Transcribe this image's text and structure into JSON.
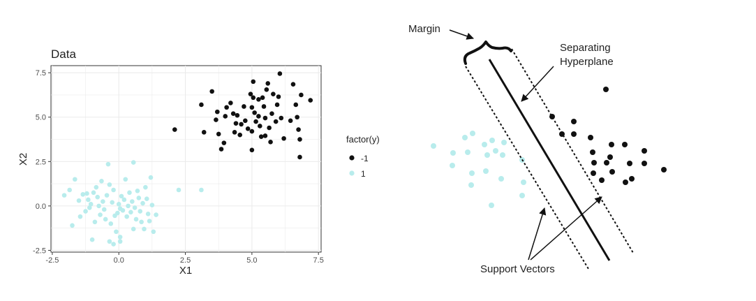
{
  "chart_data": [
    {
      "type": "scatter",
      "title": "Data",
      "xlabel": "X1",
      "ylabel": "X2",
      "xlim": [
        -2.55,
        7.6
      ],
      "ylim": [
        -2.6,
        7.9
      ],
      "x_ticks": [
        "-2.5",
        "0.0",
        "2.5",
        "5.0",
        "7.5"
      ],
      "x_tick_values": [
        -2.5,
        0.0,
        2.5,
        5.0,
        7.5
      ],
      "y_ticks": [
        "-2.5",
        "0.0",
        "2.5",
        "5.0",
        "7.5"
      ],
      "y_tick_values": [
        -2.5,
        0.0,
        2.5,
        5.0,
        7.5
      ],
      "grid": true,
      "panel_background": "#ffffff",
      "grid_color": "#ebebeb",
      "legend": {
        "title": "factor(y)",
        "placement": "right",
        "entries": [
          {
            "label": "-1",
            "color": "#111111"
          },
          {
            "label": "1",
            "color": "#b8ecec"
          }
        ]
      },
      "series": [
        {
          "name": "-1",
          "color": "#111111",
          "points": [
            [
              2.1,
              4.3
            ],
            [
              3.1,
              5.7
            ],
            [
              3.2,
              4.15
            ],
            [
              3.5,
              6.45
            ],
            [
              3.65,
              4.85
            ],
            [
              3.7,
              5.3
            ],
            [
              3.75,
              4.05
            ],
            [
              3.85,
              3.2
            ],
            [
              3.95,
              3.55
            ],
            [
              4.0,
              5.05
            ],
            [
              4.05,
              5.55
            ],
            [
              4.2,
              5.8
            ],
            [
              4.3,
              5.2
            ],
            [
              4.35,
              4.15
            ],
            [
              4.4,
              4.65
            ],
            [
              4.45,
              5.1
            ],
            [
              4.55,
              4.0
            ],
            [
              4.6,
              4.6
            ],
            [
              4.7,
              5.6
            ],
            [
              4.75,
              4.8
            ],
            [
              4.85,
              4.35
            ],
            [
              4.95,
              6.3
            ],
            [
              5.0,
              5.55
            ],
            [
              5.0,
              4.2
            ],
            [
              5.0,
              3.15
            ],
            [
              5.05,
              7.0
            ],
            [
              5.05,
              6.1
            ],
            [
              5.1,
              5.25
            ],
            [
              5.15,
              4.75
            ],
            [
              5.25,
              6.0
            ],
            [
              5.25,
              5.05
            ],
            [
              5.3,
              4.5
            ],
            [
              5.35,
              3.9
            ],
            [
              5.4,
              6.1
            ],
            [
              5.45,
              5.6
            ],
            [
              5.5,
              4.95
            ],
            [
              5.5,
              3.95
            ],
            [
              5.55,
              6.55
            ],
            [
              5.6,
              6.9
            ],
            [
              5.65,
              4.4
            ],
            [
              5.7,
              3.6
            ],
            [
              5.75,
              5.2
            ],
            [
              5.8,
              6.3
            ],
            [
              5.9,
              4.75
            ],
            [
              5.95,
              5.7
            ],
            [
              6.0,
              6.15
            ],
            [
              6.05,
              7.45
            ],
            [
              6.1,
              4.95
            ],
            [
              6.2,
              3.8
            ],
            [
              6.45,
              4.8
            ],
            [
              6.55,
              6.85
            ],
            [
              6.65,
              5.7
            ],
            [
              6.7,
              5.0
            ],
            [
              6.75,
              4.3
            ],
            [
              6.8,
              3.75
            ],
            [
              6.8,
              2.75
            ],
            [
              6.85,
              6.25
            ],
            [
              7.2,
              5.95
            ]
          ]
        },
        {
          "name": "1",
          "color": "#b8ecec",
          "points": [
            [
              -2.05,
              0.6
            ],
            [
              -1.85,
              0.9
            ],
            [
              -1.75,
              -1.1
            ],
            [
              -1.65,
              1.5
            ],
            [
              -1.5,
              0.3
            ],
            [
              -1.45,
              -0.6
            ],
            [
              -1.35,
              0.65
            ],
            [
              -1.25,
              -0.3
            ],
            [
              -1.2,
              0.7
            ],
            [
              -1.15,
              0.35
            ],
            [
              -1.1,
              -0.1
            ],
            [
              -1.05,
              0.1
            ],
            [
              -1.0,
              -1.9
            ],
            [
              -0.95,
              0.75
            ],
            [
              -0.9,
              -0.9
            ],
            [
              -0.85,
              1.05
            ],
            [
              -0.8,
              0.5
            ],
            [
              -0.75,
              0.0
            ],
            [
              -0.7,
              -0.5
            ],
            [
              -0.65,
              1.4
            ],
            [
              -0.6,
              0.25
            ],
            [
              -0.55,
              -0.2
            ],
            [
              -0.5,
              -0.75
            ],
            [
              -0.45,
              0.6
            ],
            [
              -0.4,
              2.35
            ],
            [
              -0.35,
              1.2
            ],
            [
              -0.3,
              -1.0
            ],
            [
              -0.25,
              0.2
            ],
            [
              -0.2,
              0.9
            ],
            [
              -0.15,
              -0.55
            ],
            [
              -0.1,
              -1.45
            ],
            [
              -0.05,
              -0.4
            ],
            [
              0.0,
              0.1
            ],
            [
              0.05,
              -0.15
            ],
            [
              0.05,
              -1.75
            ],
            [
              0.1,
              0.55
            ],
            [
              0.15,
              -0.25
            ],
            [
              0.2,
              0.35
            ],
            [
              0.25,
              1.5
            ],
            [
              0.3,
              -0.6
            ],
            [
              0.35,
              0.0
            ],
            [
              0.4,
              0.75
            ],
            [
              0.45,
              -0.35
            ],
            [
              0.5,
              0.25
            ],
            [
              0.55,
              2.45
            ],
            [
              0.55,
              -1.3
            ],
            [
              0.6,
              -0.1
            ],
            [
              0.65,
              -0.75
            ],
            [
              0.7,
              0.85
            ],
            [
              0.75,
              0.45
            ],
            [
              0.8,
              -0.3
            ],
            [
              0.85,
              -0.9
            ],
            [
              0.9,
              0.15
            ],
            [
              0.95,
              -1.3
            ],
            [
              1.0,
              1.05
            ],
            [
              1.05,
              0.4
            ],
            [
              1.1,
              -0.45
            ],
            [
              1.15,
              -0.85
            ],
            [
              1.2,
              1.6
            ],
            [
              1.25,
              0.05
            ],
            [
              1.3,
              -1.45
            ],
            [
              1.4,
              -0.5
            ],
            [
              -0.2,
              -2.15
            ],
            [
              -0.35,
              -2.0
            ],
            [
              0.05,
              -2.0
            ],
            [
              2.25,
              0.9
            ],
            [
              3.1,
              0.9
            ]
          ]
        }
      ]
    },
    {
      "type": "diagram",
      "annotations": {
        "margin": "Margin",
        "hyperplane_line1": "Separating",
        "hyperplane_line2": "Hyperplane",
        "support_vectors": "Support Vectors"
      },
      "class_colors": [
        "#111111",
        "#b8ecec"
      ]
    }
  ]
}
